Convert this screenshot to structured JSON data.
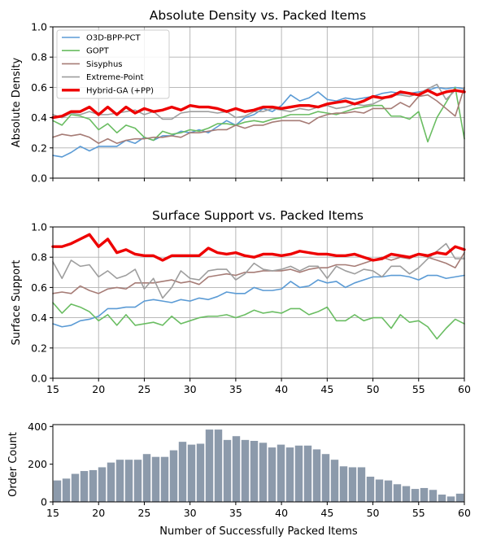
{
  "chart_data": [
    {
      "type": "line",
      "title": "Absolute Density vs. Packed Items",
      "xlabel": "",
      "ylabel": "Absolute Density",
      "xlim": [
        15,
        60
      ],
      "ylim": [
        0,
        1.0
      ],
      "xticks": [
        15,
        20,
        25,
        30,
        35,
        40,
        45,
        50,
        55,
        60
      ],
      "yticks": [
        "0.0",
        "0.2",
        "0.4",
        "0.6",
        "0.8",
        "1.0"
      ],
      "show_xtick_labels": false,
      "grid": true,
      "legend_position": "upper-left",
      "x": [
        15,
        16,
        17,
        18,
        19,
        20,
        21,
        22,
        23,
        24,
        25,
        26,
        27,
        28,
        29,
        30,
        31,
        32,
        33,
        34,
        35,
        36,
        37,
        38,
        39,
        40,
        41,
        42,
        43,
        44,
        45,
        46,
        47,
        48,
        49,
        50,
        51,
        52,
        53,
        54,
        55,
        56,
        57,
        58,
        59,
        60
      ],
      "series": [
        {
          "name": "O3D-BPP-PCT",
          "color": "#5b9bd5",
          "width": 1.6,
          "values": [
            0.15,
            0.14,
            0.17,
            0.21,
            0.18,
            0.21,
            0.21,
            0.21,
            0.25,
            0.23,
            0.27,
            0.25,
            0.28,
            0.28,
            0.31,
            0.3,
            0.32,
            0.3,
            0.34,
            0.38,
            0.35,
            0.4,
            0.42,
            0.46,
            0.44,
            0.48,
            0.55,
            0.51,
            0.53,
            0.57,
            0.52,
            0.51,
            0.53,
            0.52,
            0.53,
            0.54,
            0.56,
            0.57,
            0.56,
            0.56,
            0.57,
            0.58,
            0.6,
            0.59,
            0.6,
            0.59
          ]
        },
        {
          "name": "GOPT",
          "color": "#6abd62",
          "width": 1.6,
          "values": [
            0.38,
            0.35,
            0.42,
            0.41,
            0.39,
            0.32,
            0.36,
            0.3,
            0.35,
            0.33,
            0.27,
            0.25,
            0.31,
            0.29,
            0.3,
            0.32,
            0.31,
            0.33,
            0.36,
            0.36,
            0.35,
            0.37,
            0.38,
            0.37,
            0.39,
            0.4,
            0.42,
            0.42,
            0.42,
            0.44,
            0.43,
            0.42,
            0.44,
            0.46,
            0.47,
            0.48,
            0.48,
            0.41,
            0.41,
            0.39,
            0.44,
            0.24,
            0.4,
            0.5,
            0.6,
            0.26
          ]
        },
        {
          "name": "Sisyphus",
          "color": "#a67c76",
          "width": 1.6,
          "values": [
            0.27,
            0.29,
            0.28,
            0.29,
            0.27,
            0.23,
            0.26,
            0.23,
            0.25,
            0.26,
            0.26,
            0.27,
            0.27,
            0.28,
            0.27,
            0.3,
            0.3,
            0.31,
            0.32,
            0.32,
            0.35,
            0.33,
            0.35,
            0.35,
            0.37,
            0.38,
            0.38,
            0.38,
            0.36,
            0.4,
            0.42,
            0.43,
            0.43,
            0.44,
            0.43,
            0.46,
            0.46,
            0.46,
            0.5,
            0.47,
            0.54,
            0.55,
            0.51,
            0.46,
            0.41,
            0.6
          ]
        },
        {
          "name": "Extreme-Point",
          "color": "#9e9e9e",
          "width": 1.6,
          "values": [
            0.42,
            0.4,
            0.43,
            0.42,
            0.44,
            0.42,
            0.42,
            0.43,
            0.44,
            0.45,
            0.42,
            0.44,
            0.39,
            0.39,
            0.43,
            0.44,
            0.44,
            0.44,
            0.43,
            0.44,
            0.4,
            0.41,
            0.44,
            0.44,
            0.46,
            0.45,
            0.44,
            0.46,
            0.45,
            0.47,
            0.48,
            0.46,
            0.47,
            0.49,
            0.48,
            0.49,
            0.52,
            0.55,
            0.55,
            0.54,
            0.56,
            0.59,
            0.62,
            0.52,
            0.58,
            0.57
          ]
        },
        {
          "name": "Hybrid-GA (+PP)",
          "color": "#ee0000",
          "width": 3.4,
          "values": [
            0.4,
            0.41,
            0.44,
            0.44,
            0.47,
            0.42,
            0.47,
            0.42,
            0.47,
            0.43,
            0.46,
            0.44,
            0.45,
            0.47,
            0.45,
            0.48,
            0.47,
            0.47,
            0.46,
            0.44,
            0.46,
            0.44,
            0.45,
            0.47,
            0.47,
            0.46,
            0.47,
            0.48,
            0.48,
            0.47,
            0.49,
            0.5,
            0.51,
            0.49,
            0.51,
            0.54,
            0.53,
            0.54,
            0.57,
            0.56,
            0.55,
            0.58,
            0.55,
            0.57,
            0.58,
            0.57
          ]
        }
      ]
    },
    {
      "type": "line",
      "title": "Surface Support vs. Packed Items",
      "xlabel": "",
      "ylabel": "Surface Support",
      "xlim": [
        15,
        60
      ],
      "ylim": [
        0,
        1.0
      ],
      "xticks": [
        15,
        20,
        25,
        30,
        35,
        40,
        45,
        50,
        55,
        60
      ],
      "yticks": [
        "0.0",
        "0.2",
        "0.4",
        "0.6",
        "0.8",
        "1.0"
      ],
      "show_xtick_labels": true,
      "grid": true,
      "x": [
        15,
        16,
        17,
        18,
        19,
        20,
        21,
        22,
        23,
        24,
        25,
        26,
        27,
        28,
        29,
        30,
        31,
        32,
        33,
        34,
        35,
        36,
        37,
        38,
        39,
        40,
        41,
        42,
        43,
        44,
        45,
        46,
        47,
        48,
        49,
        50,
        51,
        52,
        53,
        54,
        55,
        56,
        57,
        58,
        59,
        60
      ],
      "series": [
        {
          "name": "O3D-BPP-PCT",
          "color": "#5b9bd5",
          "width": 1.6,
          "values": [
            0.36,
            0.34,
            0.35,
            0.38,
            0.39,
            0.41,
            0.46,
            0.46,
            0.47,
            0.47,
            0.51,
            0.52,
            0.51,
            0.5,
            0.52,
            0.51,
            0.53,
            0.52,
            0.54,
            0.57,
            0.56,
            0.56,
            0.6,
            0.58,
            0.58,
            0.59,
            0.64,
            0.6,
            0.61,
            0.65,
            0.63,
            0.64,
            0.6,
            0.63,
            0.65,
            0.67,
            0.67,
            0.68,
            0.68,
            0.67,
            0.65,
            0.68,
            0.68,
            0.66,
            0.67,
            0.68
          ]
        },
        {
          "name": "GOPT",
          "color": "#6abd62",
          "width": 1.6,
          "values": [
            0.5,
            0.43,
            0.49,
            0.47,
            0.44,
            0.38,
            0.42,
            0.35,
            0.42,
            0.35,
            0.36,
            0.37,
            0.35,
            0.41,
            0.36,
            0.38,
            0.4,
            0.41,
            0.41,
            0.42,
            0.4,
            0.42,
            0.45,
            0.43,
            0.44,
            0.43,
            0.46,
            0.46,
            0.42,
            0.44,
            0.47,
            0.38,
            0.38,
            0.42,
            0.38,
            0.4,
            0.4,
            0.33,
            0.42,
            0.37,
            0.38,
            0.34,
            0.26,
            0.33,
            0.39,
            0.36
          ]
        },
        {
          "name": "Sisyphus",
          "color": "#a67c76",
          "width": 1.6,
          "values": [
            0.56,
            0.57,
            0.56,
            0.61,
            0.58,
            0.56,
            0.59,
            0.6,
            0.59,
            0.63,
            0.63,
            0.63,
            0.64,
            0.65,
            0.63,
            0.64,
            0.62,
            0.67,
            0.68,
            0.69,
            0.68,
            0.7,
            0.7,
            0.71,
            0.71,
            0.71,
            0.72,
            0.7,
            0.72,
            0.73,
            0.73,
            0.75,
            0.75,
            0.74,
            0.76,
            0.78,
            0.8,
            0.78,
            0.8,
            0.79,
            0.82,
            0.8,
            0.78,
            0.76,
            0.73,
            0.83
          ]
        },
        {
          "name": "Extreme-Point",
          "color": "#9e9e9e",
          "width": 1.6,
          "values": [
            0.77,
            0.66,
            0.78,
            0.74,
            0.75,
            0.67,
            0.71,
            0.66,
            0.68,
            0.72,
            0.59,
            0.66,
            0.53,
            0.6,
            0.71,
            0.66,
            0.65,
            0.71,
            0.72,
            0.72,
            0.65,
            0.69,
            0.76,
            0.72,
            0.71,
            0.72,
            0.74,
            0.71,
            0.74,
            0.74,
            0.66,
            0.74,
            0.71,
            0.69,
            0.72,
            0.71,
            0.67,
            0.74,
            0.74,
            0.69,
            0.73,
            0.79,
            0.84,
            0.89,
            0.79,
            0.79
          ]
        },
        {
          "name": "Hybrid-GA (+PP)",
          "color": "#ee0000",
          "width": 3.4,
          "values": [
            0.87,
            0.87,
            0.89,
            0.92,
            0.95,
            0.87,
            0.92,
            0.83,
            0.85,
            0.82,
            0.81,
            0.81,
            0.78,
            0.81,
            0.81,
            0.81,
            0.81,
            0.86,
            0.83,
            0.82,
            0.83,
            0.81,
            0.8,
            0.82,
            0.82,
            0.81,
            0.82,
            0.84,
            0.83,
            0.82,
            0.82,
            0.81,
            0.81,
            0.82,
            0.8,
            0.78,
            0.79,
            0.82,
            0.81,
            0.8,
            0.82,
            0.81,
            0.83,
            0.82,
            0.87,
            0.85
          ]
        }
      ]
    },
    {
      "type": "bar",
      "title": "",
      "xlabel": "Number of Successfully Packed Items",
      "ylabel": "Order Count",
      "xlim": [
        15,
        60
      ],
      "ylim": [
        0,
        410
      ],
      "xticks": [
        15,
        20,
        25,
        30,
        35,
        40,
        45,
        50,
        55,
        60
      ],
      "yticks": [
        0,
        200,
        400
      ],
      "show_xtick_labels": true,
      "grid": false,
      "bar_color": "#8c9aab",
      "categories": [
        15,
        16,
        17,
        18,
        19,
        20,
        21,
        22,
        23,
        24,
        25,
        26,
        27,
        28,
        29,
        30,
        31,
        32,
        33,
        34,
        35,
        36,
        37,
        38,
        39,
        40,
        41,
        42,
        43,
        44,
        45,
        46,
        47,
        48,
        49,
        50,
        51,
        52,
        53,
        54,
        55,
        56,
        57,
        58,
        59,
        60
      ],
      "values": [
        115,
        125,
        150,
        165,
        170,
        185,
        210,
        225,
        225,
        225,
        255,
        240,
        240,
        275,
        320,
        305,
        310,
        385,
        385,
        330,
        350,
        330,
        325,
        315,
        290,
        305,
        290,
        300,
        300,
        280,
        255,
        225,
        190,
        185,
        185,
        135,
        120,
        115,
        95,
        85,
        70,
        75,
        65,
        40,
        30,
        45
      ]
    }
  ]
}
